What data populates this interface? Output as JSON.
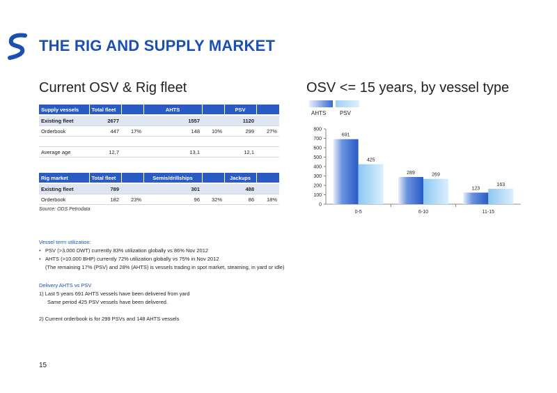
{
  "header": {
    "title": "THE RIG AND SUPPLY MARKET"
  },
  "sections": {
    "left_title": "Current OSV & Rig fleet",
    "right_title": "OSV <= 15 years, by vessel type"
  },
  "supply_table": {
    "headers": [
      "Supply vessels",
      "Total fleet",
      "",
      "AHTS",
      "",
      "PSV",
      ""
    ],
    "existing": [
      "Existing fleet",
      "2677",
      "",
      "1557",
      "",
      "1120",
      ""
    ],
    "orderbook": [
      "Orderbook",
      "447",
      "17%",
      "148",
      "10%",
      "299",
      "27%"
    ],
    "blank": [
      "",
      "",
      "",
      "",
      "",
      "",
      ""
    ],
    "average_age": [
      "Average age",
      "12,7",
      "",
      "13,1",
      "",
      "12,1",
      ""
    ]
  },
  "rig_table": {
    "headers": [
      "Rig market",
      "Total fleet",
      "",
      "Semis/drillships",
      "",
      "Jackups",
      ""
    ],
    "existing": [
      "Existing fleet",
      "789",
      "",
      "301",
      "",
      "488",
      ""
    ],
    "orderbook": [
      "Orderbook",
      "182",
      "23%",
      "96",
      "32%",
      "86",
      "18%"
    ]
  },
  "source": "Source: ODS Petrodata",
  "chart_data": {
    "type": "bar",
    "categories": [
      "0-5",
      "6-10",
      "11-15"
    ],
    "series": [
      {
        "name": "AHTS",
        "values": [
          691,
          289,
          123
        ]
      },
      {
        "name": "PSV",
        "values": [
          425,
          269,
          163
        ]
      }
    ],
    "ylim": [
      0,
      800
    ],
    "yticks": [
      0,
      100,
      200,
      300,
      400,
      500,
      600,
      700,
      800
    ],
    "legend": "top-left",
    "grid": false,
    "colors": {
      "AHTS": "#3769cf",
      "PSV": "#a9d7f7"
    }
  },
  "notes": {
    "utilization_heading": "Vessel term utilization:",
    "bullet1": "PSV (>3.000 DWT) currently 83% utilization globally vs 86% Nov 2012",
    "bullet2": "AHTS (>10.000 BHP) currently 72% utilization globally vs 75% in Nov 2012",
    "bullet2_note": "(The remaining 17% (PSV) and 28% (AHTS) is vessels trading in spot market, steaming, in yard or idle)",
    "delivery_heading": "Delivery AHTS vs PSV",
    "item1": "1) Last 5 years 691 AHTS vessels have been delivered from yard",
    "item1_note": "Same period 425 PSV vessels have been delivered.",
    "item2": "2) Current orderbook is for 299 PSVs and 148 AHTS vessels"
  },
  "page_number": "15",
  "colors": {
    "brand_blue": "#1b4fb3",
    "header_blue": "#2a5bc4"
  }
}
